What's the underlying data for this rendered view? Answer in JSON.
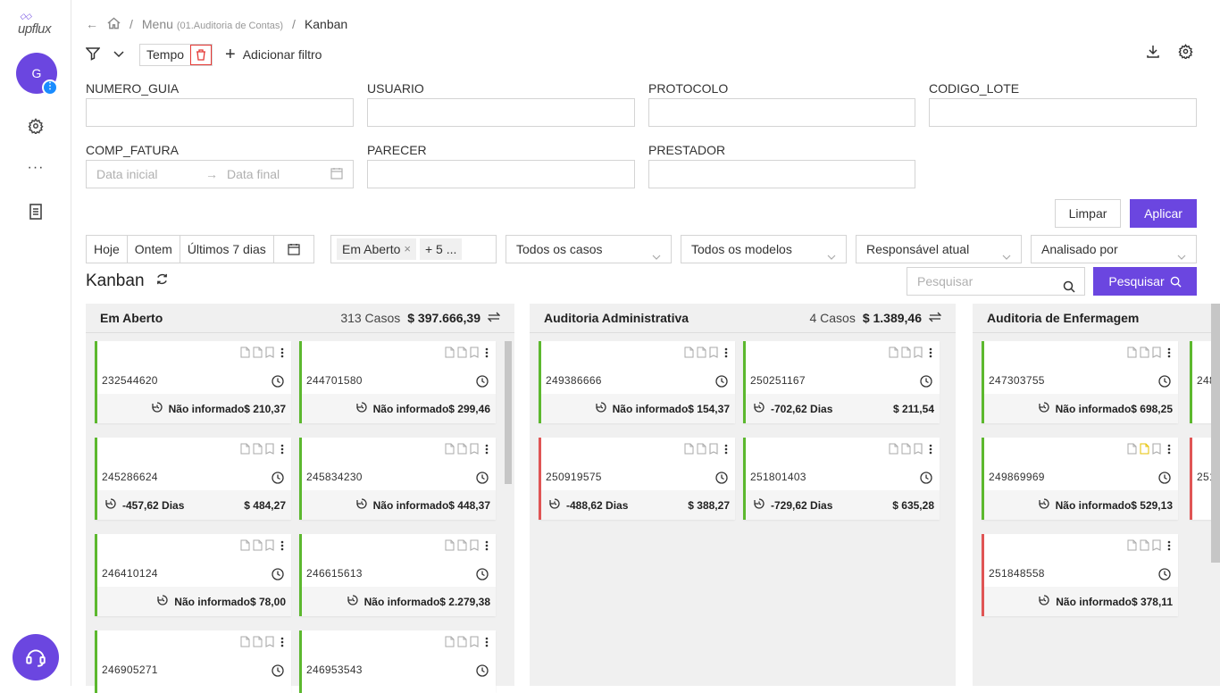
{
  "app": {
    "logo": "upflux",
    "avatar_initial": "G",
    "avatar_badge": "⋮",
    "more": "···"
  },
  "breadcrumb": {
    "menu": "Menu",
    "menu_sub": "(01.Auditoria de Contas)",
    "sep": "/",
    "current": "Kanban"
  },
  "filter": {
    "chip": "Tempo",
    "add": "Adicionar filtro"
  },
  "fields": {
    "numero_guia": "NUMERO_GUIA",
    "usuario": "USUARIO",
    "protocolo": "PROTOCOLO",
    "codigo_lote": "CODIGO_LOTE",
    "comp_fatura": "COMP_FATURA",
    "parecer": "PARECER",
    "prestador": "PRESTADOR",
    "date_start": "Data inicial",
    "date_end": "Data final"
  },
  "actions": {
    "limpar": "Limpar",
    "aplicar": "Aplicar"
  },
  "quick": {
    "hoje": "Hoje",
    "ontem": "Ontem",
    "ultimos": "Últimos 7 dias"
  },
  "status": {
    "tag": "Em Aberto",
    "more": "+ 5 ..."
  },
  "selects": {
    "casos": "Todos os casos",
    "modelos": "Todos os modelos",
    "responsavel": "Responsável atual",
    "analisado": "Analisado por"
  },
  "kanban": {
    "title": "Kanban",
    "search_placeholder": "Pesquisar",
    "search_button": "Pesquisar"
  },
  "columns": [
    {
      "name": "Em Aberto",
      "count": "313 Casos",
      "sum": "$ 397.666,39",
      "cards": [
        {
          "id": "232544620",
          "info": "Não informado",
          "value": "$ 210,37",
          "status": "green"
        },
        {
          "id": "244701580",
          "info": "Não informado",
          "value": "$ 299,46",
          "status": "green"
        },
        {
          "id": "245286624",
          "info": "-457,62 Dias",
          "value": "$ 484,27",
          "status": "green"
        },
        {
          "id": "245834230",
          "info": "Não informado",
          "value": "$ 448,37",
          "status": "green"
        },
        {
          "id": "246410124",
          "info": "Não informado",
          "value": "$ 78,00",
          "status": "green"
        },
        {
          "id": "246615613",
          "info": "Não informado",
          "value": "$ 2.279,38",
          "status": "green"
        },
        {
          "id": "246905271",
          "info": "",
          "value": "",
          "status": "green"
        },
        {
          "id": "246953543",
          "info": "",
          "value": "",
          "status": "green"
        }
      ]
    },
    {
      "name": "Auditoria Administrativa",
      "count": "4 Casos",
      "sum": "$ 1.389,46",
      "cards": [
        {
          "id": "249386666",
          "info": "Não informado",
          "value": "$ 154,37",
          "status": "green"
        },
        {
          "id": "250251167",
          "info": "-702,62 Dias",
          "value": "$ 211,54",
          "status": "green"
        },
        {
          "id": "250919575",
          "info": "-488,62 Dias",
          "value": "$ 388,27",
          "status": "red"
        },
        {
          "id": "251801403",
          "info": "-729,62 Dias",
          "value": "$ 635,28",
          "status": "green"
        }
      ]
    },
    {
      "name": "Auditoria de Enfermagem",
      "count": "",
      "sum": "",
      "cards": [
        {
          "id": "247303755",
          "info": "Não informado",
          "value": "$ 698,25",
          "status": "green"
        },
        {
          "id": "249869969",
          "info": "Não informado",
          "value": "$ 529,13",
          "status": "green"
        },
        {
          "id": "251848558",
          "info": "Não informado",
          "value": "$ 378,11",
          "status": "red"
        }
      ],
      "partial": [
        "248",
        "251"
      ]
    }
  ]
}
